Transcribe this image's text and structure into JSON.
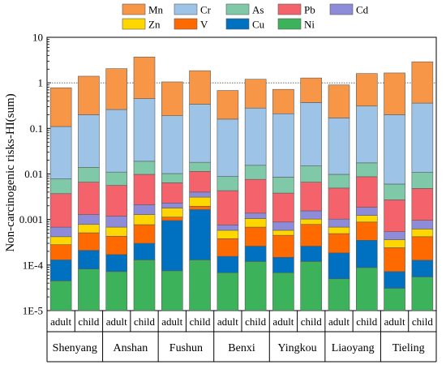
{
  "chart_data": {
    "type": "bar",
    "stacked": true,
    "y_scale": "log",
    "ylabel": "Non-carcinogenic risks-HI(sum)",
    "ylim": [
      1e-05,
      10
    ],
    "yticks": [
      {
        "value": 10,
        "label": "10"
      },
      {
        "value": 1,
        "label": "1"
      },
      {
        "value": 0.1,
        "label": "0.1"
      },
      {
        "value": 0.01,
        "label": "0.01"
      },
      {
        "value": 0.001,
        "label": "0.001"
      },
      {
        "value": 0.0001,
        "label": "1E-4"
      },
      {
        "value": 1e-05,
        "label": "1E-5"
      }
    ],
    "reference_line": 1,
    "groups": [
      "Shenyang",
      "Anshan",
      "Fushun",
      "Benxi",
      "Yingkou",
      "Liaoyang",
      "Tieling"
    ],
    "subgroups": [
      "adult",
      "child"
    ],
    "stack_order": [
      "Ni",
      "Cu",
      "V",
      "Zn",
      "Cd",
      "Pb",
      "As",
      "Cr",
      "Mn"
    ],
    "legend_order": [
      "Mn",
      "Cr",
      "As",
      "Pb",
      "Cd",
      "Zn",
      "V",
      "Cu",
      "Ni"
    ],
    "legend_position": "top",
    "colors": {
      "Mn": "#f79646",
      "Cr": "#9dc3e6",
      "As": "#7fc9a8",
      "Pb": "#f4636b",
      "Cd": "#8e8cd8",
      "Zn": "#ffd700",
      "V": "#ff6a00",
      "Cu": "#0070c0",
      "Ni": "#3cb35a"
    },
    "bars": [
      {
        "group": "Shenyang",
        "subgroup": "adult",
        "tops": {
          "Ni": 4.5e-05,
          "Cu": 0.00013,
          "V": 0.00028,
          "Zn": 0.00042,
          "Cd": 0.00068,
          "Pb": 0.0037,
          "As": 0.0078,
          "Cr": 0.11,
          "Mn": 0.78
        }
      },
      {
        "group": "Shenyang",
        "subgroup": "child",
        "tops": {
          "Ni": 8.2e-05,
          "Cu": 0.00021,
          "V": 0.00051,
          "Zn": 0.00078,
          "Cd": 0.00128,
          "Pb": 0.0066,
          "As": 0.014,
          "Cr": 0.2,
          "Mn": 1.4
        }
      },
      {
        "group": "Anshan",
        "subgroup": "adult",
        "tops": {
          "Ni": 7.2e-05,
          "Cu": 0.00017,
          "V": 0.00043,
          "Zn": 0.00068,
          "Cd": 0.00118,
          "Pb": 0.0056,
          "As": 0.011,
          "Cr": 0.26,
          "Mn": 2.05
        }
      },
      {
        "group": "Anshan",
        "subgroup": "child",
        "tops": {
          "Ni": 0.00013,
          "Cu": 0.0003,
          "V": 0.00077,
          "Zn": 0.00128,
          "Cd": 0.0021,
          "Pb": 0.0098,
          "As": 0.019,
          "Cr": 0.45,
          "Mn": 3.7
        }
      },
      {
        "group": "Fushun",
        "subgroup": "adult",
        "tops": {
          "Ni": 7.5e-05,
          "Cu": 0.00095,
          "V": 0.00113,
          "Zn": 0.00178,
          "Cd": 0.0023,
          "Pb": 0.0064,
          "As": 0.0102,
          "Cr": 0.19,
          "Mn": 1.05
        }
      },
      {
        "group": "Fushun",
        "subgroup": "child",
        "tops": {
          "Ni": 0.00013,
          "Cu": 0.00165,
          "V": 0.00195,
          "Zn": 0.0031,
          "Cd": 0.004,
          "Pb": 0.0114,
          "As": 0.018,
          "Cr": 0.34,
          "Mn": 1.85
        }
      },
      {
        "group": "Benxi",
        "subgroup": "adult",
        "tops": {
          "Ni": 6.8e-05,
          "Cu": 0.000155,
          "V": 0.00038,
          "Zn": 0.00058,
          "Cd": 0.00076,
          "Pb": 0.0043,
          "As": 0.0088,
          "Cr": 0.16,
          "Mn": 0.68
        }
      },
      {
        "group": "Benxi",
        "subgroup": "child",
        "tops": {
          "Ni": 0.00012,
          "Cu": 0.00026,
          "V": 0.00068,
          "Zn": 0.00105,
          "Cd": 0.00138,
          "Pb": 0.0076,
          "As": 0.0155,
          "Cr": 0.28,
          "Mn": 1.2
        }
      },
      {
        "group": "Yingkou",
        "subgroup": "adult",
        "tops": {
          "Ni": 6.8e-05,
          "Cu": 0.000148,
          "V": 0.00045,
          "Zn": 0.00058,
          "Cd": 0.00088,
          "Pb": 0.0038,
          "As": 0.0085,
          "Cr": 0.21,
          "Mn": 0.72
        }
      },
      {
        "group": "Yingkou",
        "subgroup": "child",
        "tops": {
          "Ni": 0.00012,
          "Cu": 0.00026,
          "V": 0.00078,
          "Zn": 0.00102,
          "Cd": 0.00155,
          "Pb": 0.0066,
          "As": 0.015,
          "Cr": 0.37,
          "Mn": 1.28
        }
      },
      {
        "group": "Liaoyang",
        "subgroup": "adult",
        "tops": {
          "Ni": 5e-05,
          "Cu": 0.000185,
          "V": 0.00049,
          "Zn": 0.00068,
          "Cd": 0.00102,
          "Pb": 0.0049,
          "As": 0.0098,
          "Cr": 0.17,
          "Mn": 0.9
        }
      },
      {
        "group": "Liaoyang",
        "subgroup": "child",
        "tops": {
          "Ni": 8.8e-05,
          "Cu": 0.00035,
          "V": 0.00088,
          "Zn": 0.00123,
          "Cd": 0.00185,
          "Pb": 0.0087,
          "As": 0.0175,
          "Cr": 0.31,
          "Mn": 1.6
        }
      },
      {
        "group": "Tieling",
        "subgroup": "adult",
        "tops": {
          "Ni": 3.1e-05,
          "Cu": 7.2e-05,
          "V": 0.00024,
          "Zn": 0.00036,
          "Cd": 0.00054,
          "Pb": 0.0027,
          "As": 0.006,
          "Cr": 0.2,
          "Mn": 1.65
        }
      },
      {
        "group": "Tieling",
        "subgroup": "child",
        "tops": {
          "Ni": 5.5e-05,
          "Cu": 0.000128,
          "V": 0.00042,
          "Zn": 0.00062,
          "Cd": 0.00096,
          "Pb": 0.0048,
          "As": 0.0108,
          "Cr": 0.36,
          "Mn": 2.9
        }
      }
    ]
  }
}
